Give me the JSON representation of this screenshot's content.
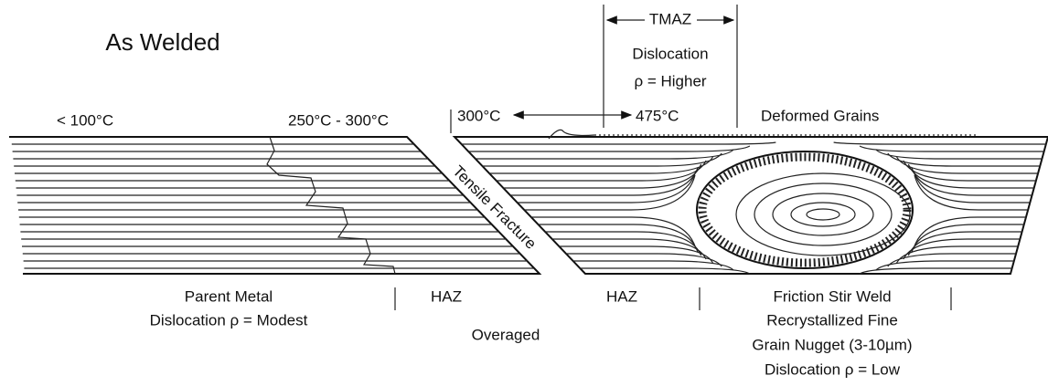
{
  "title": "As Welded",
  "temperatures": {
    "parent": "< 100°C",
    "haz": "250°C - 300°C",
    "range_start": "300°C",
    "range_end": "475°C"
  },
  "tmaz": {
    "label": "TMAZ",
    "lines": [
      "Dislocation",
      "ρ = Higher"
    ]
  },
  "deformed_grains": "Deformed Grains",
  "fracture": "Tensile Fracture",
  "zones": {
    "parent_metal": [
      "Parent Metal",
      "Dislocation ρ = Modest"
    ],
    "haz_left": "HAZ",
    "overaged": "Overaged",
    "haz_right": "HAZ",
    "weld": [
      "Friction Stir Weld",
      "Recrystallized Fine",
      "Grain Nugget (3-10µm)",
      "Dislocation ρ = Low"
    ]
  }
}
